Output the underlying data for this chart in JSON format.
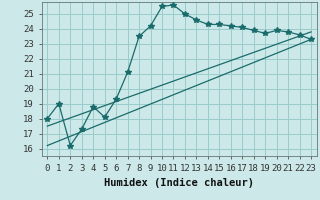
{
  "xlabel": "Humidex (Indice chaleur)",
  "bg_color": "#cce8e8",
  "line_color": "#1a6b6b",
  "grid_color": "#99cccc",
  "xlim": [
    -0.5,
    23.5
  ],
  "ylim": [
    15.5,
    25.8
  ],
  "xticks": [
    0,
    1,
    2,
    3,
    4,
    5,
    6,
    7,
    8,
    9,
    10,
    11,
    12,
    13,
    14,
    15,
    16,
    17,
    18,
    19,
    20,
    21,
    22,
    23
  ],
  "yticks": [
    16,
    17,
    18,
    19,
    20,
    21,
    22,
    23,
    24,
    25
  ],
  "main_x": [
    0,
    1,
    2,
    3,
    4,
    5,
    6,
    7,
    8,
    9,
    10,
    11,
    12,
    13,
    14,
    15,
    16,
    17,
    18,
    19,
    20,
    21,
    22,
    23
  ],
  "main_y": [
    18.0,
    19.0,
    16.2,
    17.3,
    18.8,
    18.1,
    19.3,
    21.1,
    23.5,
    24.2,
    25.5,
    25.6,
    25.0,
    24.6,
    24.3,
    24.3,
    24.2,
    24.1,
    23.9,
    23.7,
    23.9,
    23.8,
    23.6,
    23.3
  ],
  "line2_x": [
    0,
    23
  ],
  "line2_y": [
    16.2,
    23.3
  ],
  "line3_x": [
    0,
    23
  ],
  "line3_y": [
    17.5,
    23.8
  ],
  "marker": "*",
  "marker_size": 4,
  "font_family": "monospace",
  "tick_fontsize": 6.5,
  "xlabel_fontsize": 7.5
}
